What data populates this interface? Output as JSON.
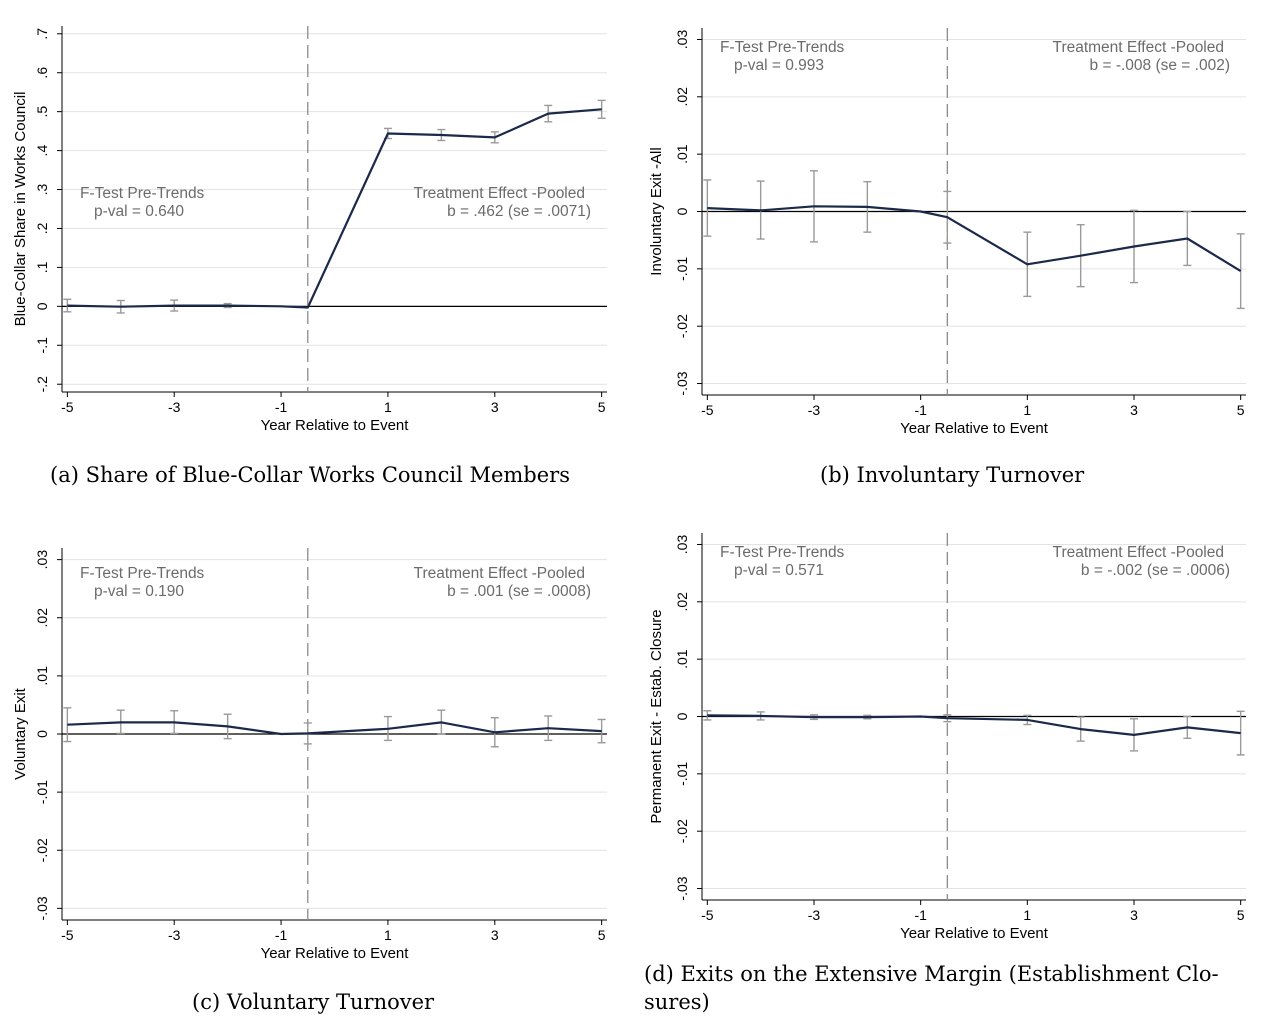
{
  "chart_data": [
    {
      "type": "line",
      "panel": "a",
      "caption": "(a) Share of Blue-Collar Works Council Members",
      "xlabel": "Year Relative to Event",
      "ylabel": "Blue-Collar Share in Works Council",
      "x_ticks": [
        -5,
        -3,
        -1,
        1,
        3,
        5
      ],
      "y_ticks": [
        -0.2,
        -0.1,
        0,
        0.1,
        0.2,
        0.3,
        0.4,
        0.5,
        0.6,
        0.7
      ],
      "y_tick_labels": [
        "-.2",
        "-.1",
        "0",
        ".1",
        ".2",
        ".3",
        ".4",
        ".5",
        ".6",
        ".7"
      ],
      "xlim": [
        -5.1,
        5.1
      ],
      "ylim": [
        -0.22,
        0.72
      ],
      "event_line_x": -0.5,
      "grid": true,
      "x": [
        -5,
        -4,
        -3,
        -2,
        -1,
        -0.5,
        1,
        2,
        3,
        4,
        5
      ],
      "y": [
        0.002,
        -0.001,
        0.002,
        0.002,
        0.0,
        -0.003,
        0.444,
        0.44,
        0.434,
        0.495,
        0.506
      ],
      "ci_low": [
        -0.014,
        -0.017,
        -0.012,
        -0.003,
        null,
        null,
        0.431,
        0.426,
        0.42,
        0.474,
        0.483
      ],
      "ci_high": [
        0.018,
        0.015,
        0.016,
        0.007,
        null,
        null,
        0.457,
        0.454,
        0.448,
        0.516,
        0.529
      ],
      "annotations": {
        "left_title": "F-Test Pre-Trends",
        "left_value": "p-val =    0.640",
        "right_title": "Treatment Effect -Pooled",
        "right_value": "b = .462 (se = .0071)"
      }
    },
    {
      "type": "line",
      "panel": "b",
      "caption": "(b) Involuntary Turnover",
      "xlabel": "Year Relative to Event",
      "ylabel": "Involuntary Exit -All",
      "x_ticks": [
        -5,
        -3,
        -1,
        1,
        3,
        5
      ],
      "y_ticks": [
        -0.03,
        -0.02,
        -0.01,
        0,
        0.01,
        0.02,
        0.03
      ],
      "y_tick_labels": [
        "-.03",
        "-.02",
        "-.01",
        "0",
        ".01",
        ".02",
        ".03"
      ],
      "xlim": [
        -5.1,
        5.1
      ],
      "ylim": [
        -0.032,
        0.032
      ],
      "event_line_x": -0.5,
      "grid": true,
      "x": [
        -5,
        -4,
        -3,
        -2,
        -1,
        -0.5,
        1,
        2,
        3,
        4,
        5
      ],
      "y": [
        0.0006,
        0.0002,
        0.0009,
        0.0008,
        0.0,
        -0.001,
        -0.0092,
        -0.0077,
        -0.0061,
        -0.0047,
        -0.0104
      ],
      "ci_low": [
        -0.0043,
        -0.0048,
        -0.0053,
        -0.0036,
        null,
        -0.0055,
        -0.0148,
        -0.0131,
        -0.0124,
        -0.0094,
        -0.0169
      ],
      "ci_high": [
        0.0055,
        0.0053,
        0.0071,
        0.0052,
        null,
        0.0035,
        -0.0036,
        -0.0023,
        0.0002,
        0.0,
        -0.0039
      ],
      "annotations": {
        "left_title": "F-Test Pre-Trends",
        "left_value": "p-val =    0.993",
        "right_title": "Treatment Effect -Pooled",
        "right_value": "b = -.008 (se = .002)"
      }
    },
    {
      "type": "line",
      "panel": "c",
      "caption": "(c) Voluntary Turnover",
      "xlabel": "Year Relative to Event",
      "ylabel": "Voluntary Exit",
      "x_ticks": [
        -5,
        -3,
        -1,
        1,
        3,
        5
      ],
      "y_ticks": [
        -0.03,
        -0.02,
        -0.01,
        0,
        0.01,
        0.02,
        0.03
      ],
      "y_tick_labels": [
        "-.03",
        "-.02",
        "-.01",
        "0",
        ".01",
        ".02",
        ".03"
      ],
      "xlim": [
        -5.1,
        5.1
      ],
      "ylim": [
        -0.032,
        0.032
      ],
      "event_line_x": -0.5,
      "grid": true,
      "x": [
        -5,
        -4,
        -3,
        -2,
        -1,
        -0.5,
        1,
        2,
        3,
        4,
        5
      ],
      "y": [
        0.0016,
        0.002,
        0.002,
        0.0013,
        0.0,
        0.0001,
        0.0009,
        0.002,
        0.0003,
        0.001,
        0.0005
      ],
      "ci_low": [
        -0.0013,
        0.0001,
        0.0001,
        -0.0008,
        null,
        -0.0017,
        -0.0011,
        0.0,
        -0.0022,
        -0.0011,
        -0.0015
      ],
      "ci_high": [
        0.0045,
        0.0041,
        0.004,
        0.0034,
        null,
        0.0019,
        0.003,
        0.0041,
        0.0028,
        0.0031,
        0.0025
      ],
      "annotations": {
        "left_title": "F-Test Pre-Trends",
        "left_value": "p-val =    0.190",
        "right_title": "Treatment Effect -Pooled",
        "right_value": "b = .001 (se = .0008)"
      }
    },
    {
      "type": "line",
      "panel": "d",
      "caption_line1": "(d) Exits on the Extensive Margin (Establishment Clo-",
      "caption_line2": "sures)",
      "xlabel": "Year Relative to Event",
      "ylabel": "Permanent Exit - Estab. Closure",
      "x_ticks": [
        -5,
        -3,
        -1,
        1,
        3,
        5
      ],
      "y_ticks": [
        -0.03,
        -0.02,
        -0.01,
        0,
        0.01,
        0.02,
        0.03
      ],
      "y_tick_labels": [
        "-.03",
        "-.02",
        "-.01",
        "0",
        ".01",
        ".02",
        ".03"
      ],
      "xlim": [
        -5.1,
        5.1
      ],
      "ylim": [
        -0.032,
        0.032
      ],
      "event_line_x": -0.5,
      "grid": true,
      "x": [
        -5,
        -4,
        -3,
        -2,
        -1,
        -0.5,
        1,
        2,
        3,
        4,
        5
      ],
      "y": [
        0.0002,
        0.0001,
        -0.0001,
        -0.0001,
        0.0,
        -0.0003,
        -0.0006,
        -0.0022,
        -0.0032,
        -0.0019,
        -0.0029
      ],
      "ci_low": [
        -0.0006,
        -0.0006,
        -0.0005,
        -0.0004,
        null,
        -0.0009,
        -0.0014,
        -0.0043,
        -0.006,
        -0.0038,
        -0.0067
      ],
      "ci_high": [
        0.001,
        0.0008,
        0.0003,
        0.0002,
        null,
        0.0003,
        0.0002,
        -0.0001,
        -0.0004,
        0.0,
        0.0009
      ],
      "annotations": {
        "left_title": "F-Test Pre-Trends",
        "left_value": "p-val =    0.571",
        "right_title": "Treatment Effect -Pooled",
        "right_value": "b = -.002 (se = .0006)"
      }
    }
  ],
  "colors": {
    "series_line": "#1b2a4a",
    "ci_bars": "#9a9a9a",
    "grid": "#e3e3e3",
    "event_line": "#8c8c8c",
    "zero_line": "#000000",
    "annotation_text": "#6b6b6b"
  }
}
